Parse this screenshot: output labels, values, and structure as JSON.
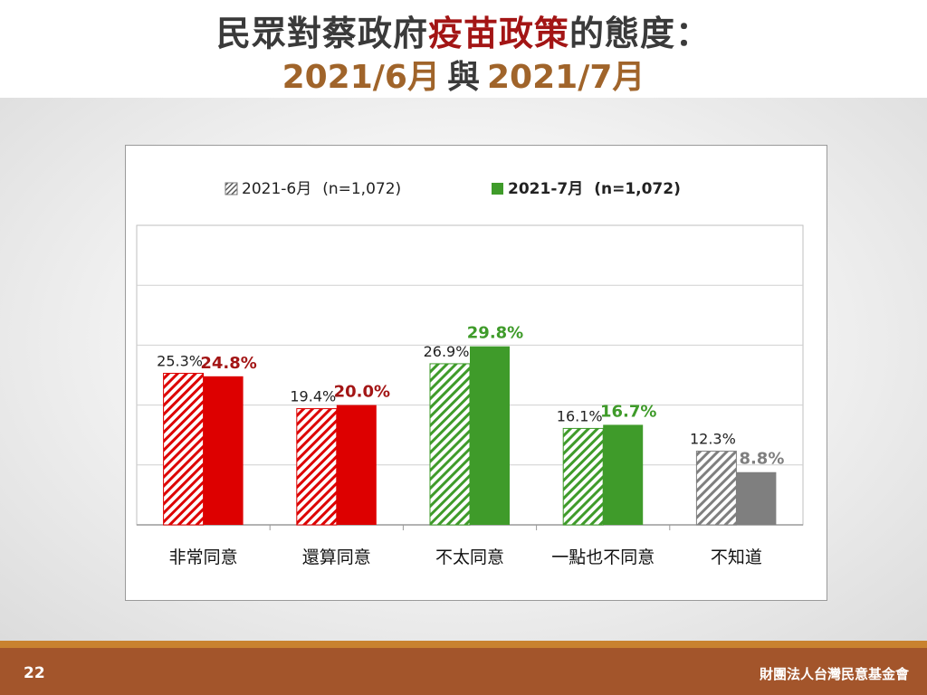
{
  "slide": {
    "title_part1": "民眾對蔡政府",
    "title_highlight": "疫苗政策",
    "title_part2": "的態度：",
    "subtitle_left": "2021/6月",
    "subtitle_mid": "與",
    "subtitle_right": "2021/7月",
    "page_number": "22",
    "organization": "財團法人台灣民意基金會"
  },
  "colors": {
    "title": "#3a3a3a",
    "title_highlight": "#a31515",
    "subtitle": "#a0642a",
    "agree": "#dd0000",
    "agree_label": "#a31515",
    "disagree": "#3f9b2a",
    "disagree_label": "#3f9b2a",
    "unknown": "#7f7f7f",
    "unknown_label": "#7f7f7f",
    "footer": "#a3552b"
  },
  "chart_data": {
    "type": "bar",
    "categories": [
      "非常同意",
      "還算同意",
      "不太同意",
      "一點也不同意",
      "不知道"
    ],
    "series": [
      {
        "name": "2021-6月 (n=1,072)",
        "values": [
          25.3,
          19.4,
          26.9,
          16.1,
          12.3
        ],
        "style": "hatched"
      },
      {
        "name": "2021-7月 (n=1,072)",
        "values": [
          24.8,
          20.0,
          29.8,
          16.7,
          8.8
        ],
        "style": "solid"
      }
    ],
    "value_labels": {
      "series0": [
        "25.3%",
        "19.4%",
        "26.9%",
        "16.1%",
        "12.3%"
      ],
      "series1": [
        "24.8%",
        "20.0%",
        "29.8%",
        "16.7%",
        "8.8%"
      ]
    },
    "category_colors": [
      "agree",
      "agree",
      "disagree",
      "disagree",
      "unknown"
    ],
    "ylim": [
      0,
      50
    ],
    "grid": true,
    "legend": "top-center",
    "legend_labels": [
      {
        "date": "2021-6月",
        "n": "(n=1,072)"
      },
      {
        "date": "2021-7月",
        "n": "(n=1,072)"
      }
    ]
  }
}
